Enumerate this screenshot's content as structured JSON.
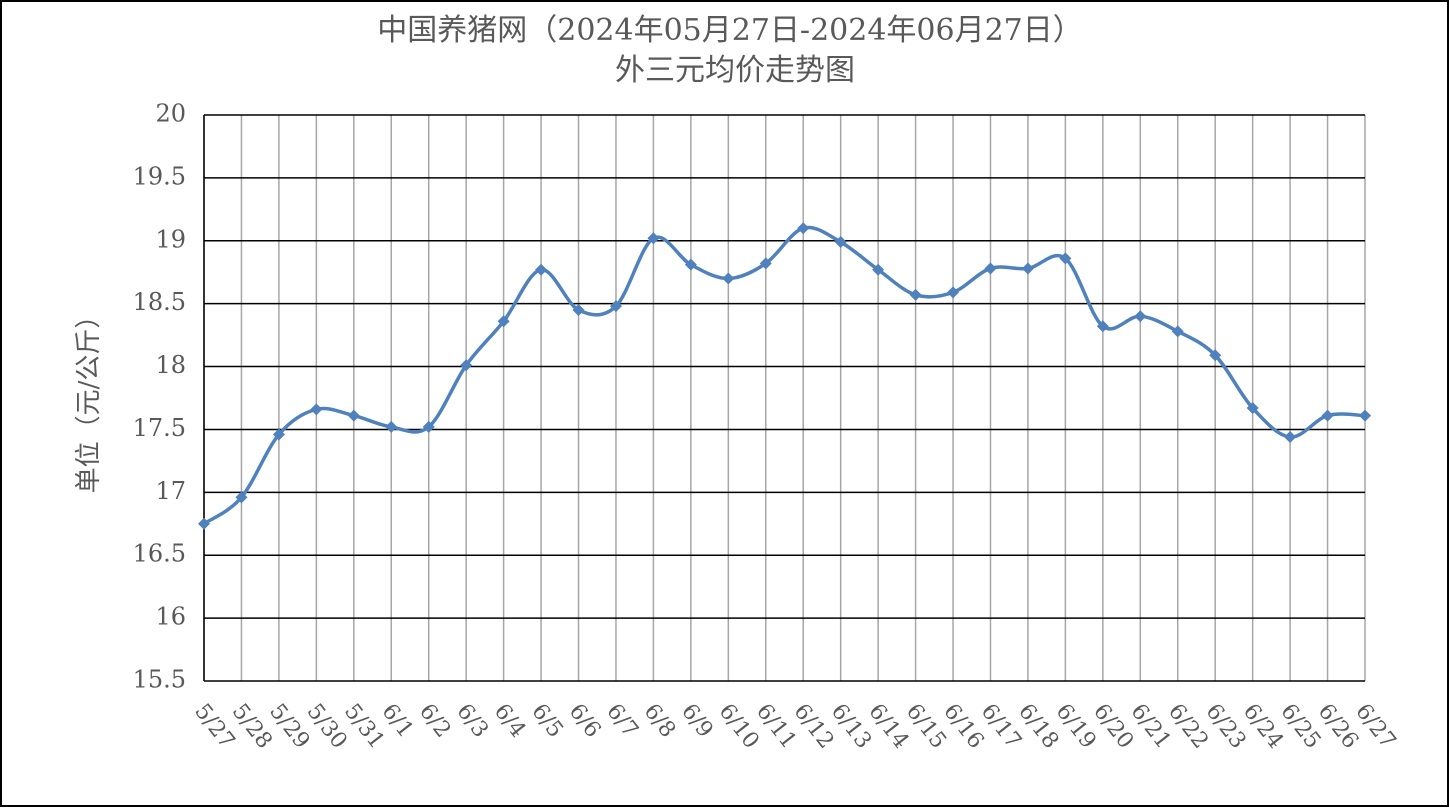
{
  "chart_data": {
    "type": "line",
    "title": "中国养猪网（2024年05月27日-2024年06月27日）",
    "subtitle": "外三元均价走势图",
    "y_label": "单位（元/公斤）",
    "categories": [
      "5/27",
      "5/28",
      "5/29",
      "5/30",
      "5/31",
      "6/1",
      "6/2",
      "6/3",
      "6/4",
      "6/5",
      "6/6",
      "6/7",
      "6/8",
      "6/9",
      "6/10",
      "6/11",
      "6/12",
      "6/13",
      "6/14",
      "6/15",
      "6/16",
      "6/17",
      "6/18",
      "6/19",
      "6/20",
      "6/21",
      "6/22",
      "6/23",
      "6/24",
      "6/25",
      "6/26",
      "6/27"
    ],
    "values": [
      16.75,
      16.96,
      17.46,
      17.66,
      17.61,
      17.52,
      17.52,
      18.01,
      18.36,
      18.77,
      18.45,
      18.48,
      19.02,
      18.81,
      18.7,
      18.82,
      19.1,
      18.99,
      18.77,
      18.57,
      18.59,
      18.78,
      18.78,
      18.86,
      18.32,
      18.4,
      18.28,
      18.09,
      17.67,
      17.44,
      17.61,
      17.61
    ],
    "color": "#4f81bd",
    "ylim": [
      15.5,
      20
    ],
    "yticks": [
      15.5,
      16,
      16.5,
      17,
      17.5,
      18,
      18.5,
      19,
      19.5,
      20
    ],
    "grid": true,
    "smooth": true
  }
}
